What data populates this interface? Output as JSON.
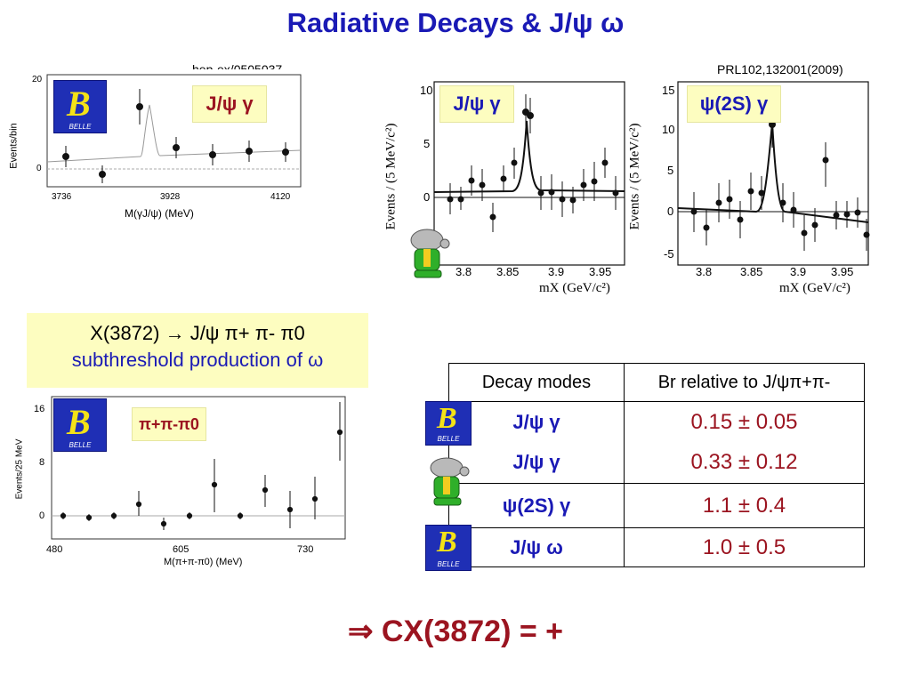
{
  "title": "Radiative Decays   &  J/ψ ω",
  "refs": {
    "left": "hep-ex/0505037",
    "right": "PRL102,132001(2009)"
  },
  "belle_logo": {
    "letter": "B",
    "text": "BELLE"
  },
  "plot1": {
    "tag": "J/ψ γ",
    "ylabel": "Events/bin",
    "xlabel": "M(γJ/ψ) (MeV)",
    "yticks": [
      "20",
      "0"
    ],
    "xticks": [
      "3736",
      "3928",
      "4120"
    ]
  },
  "plot2": {
    "tag": "J/ψ γ",
    "ylabel": "Events / (5 MeV/c²)",
    "xlabel": "mX (GeV/c²)",
    "yticks": [
      "10",
      "5",
      "0"
    ],
    "xticks": [
      "3.8",
      "3.85",
      "3.9",
      "3.95"
    ]
  },
  "plot3": {
    "tag": "ψ(2S) γ",
    "ylabel": "Events / (5 MeV/c²)",
    "xlabel": "mX (GeV/c²)",
    "yticks": [
      "15",
      "10",
      "5",
      "0",
      "-5"
    ],
    "xticks": [
      "3.8",
      "3.85",
      "3.9",
      "3.95"
    ]
  },
  "plot4": {
    "tag": "π+π-π0",
    "ylabel": "Events/25 MeV",
    "xlabel": "M(π+π-π0) (MeV)",
    "yticks": [
      "16",
      "8",
      "0"
    ],
    "xticks": [
      "480",
      "605",
      "730"
    ]
  },
  "callout": {
    "line1": "X(3872) → J/ψ π+ π- π0",
    "line2": "subthreshold production of ω"
  },
  "table": {
    "headers": [
      "Decay modes",
      "Br  relative to J/ψπ+π-"
    ],
    "rows": [
      {
        "mode": "J/ψ  γ",
        "value": "0.15 ± 0.05"
      },
      {
        "mode": "J/ψ γ",
        "value": "0.33 ± 0.12"
      },
      {
        "mode": "ψ(2S) γ",
        "value": "1.1 ± 0.4"
      },
      {
        "mode": "J/ψ ω",
        "value": "1.0 ± 0.5"
      }
    ]
  },
  "conclusion": "⇒   CX(3872) = +"
}
